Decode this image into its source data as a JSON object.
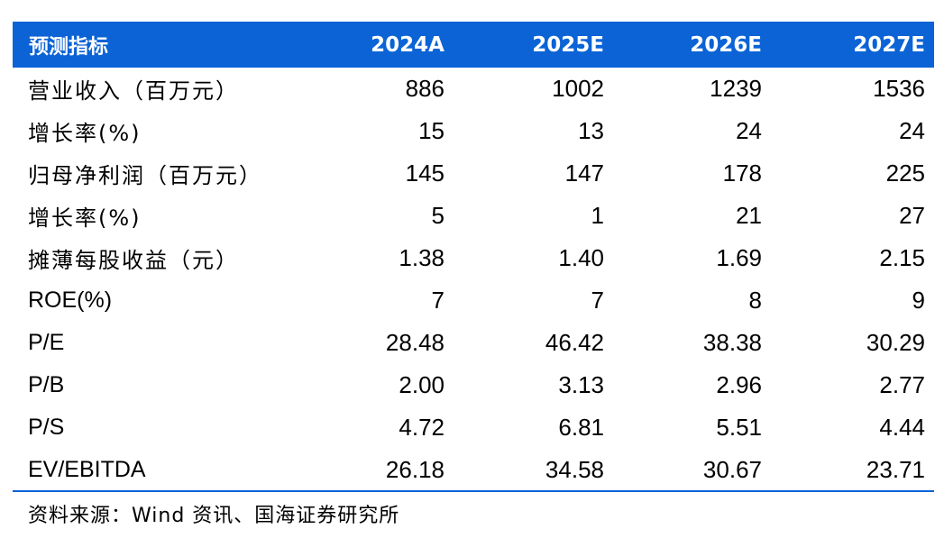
{
  "table": {
    "header": [
      "预测指标",
      "2024A",
      "2025E",
      "2026E",
      "2027E"
    ],
    "rows": [
      {
        "label": "营业收入（百万元）",
        "values": [
          "886",
          "1002",
          "1239",
          "1536"
        ],
        "latin": false
      },
      {
        "label": "增长率(%)",
        "values": [
          "15",
          "13",
          "24",
          "24"
        ],
        "latin": false
      },
      {
        "label": "归母净利润（百万元）",
        "values": [
          "145",
          "147",
          "178",
          "225"
        ],
        "latin": false
      },
      {
        "label": "增长率(%)",
        "values": [
          "5",
          "1",
          "21",
          "27"
        ],
        "latin": false
      },
      {
        "label": "摊薄每股收益（元）",
        "values": [
          "1.38",
          "1.40",
          "1.69",
          "2.15"
        ],
        "latin": false
      },
      {
        "label": "ROE(%)",
        "values": [
          "7",
          "7",
          "8",
          "9"
        ],
        "latin": true
      },
      {
        "label": "P/E",
        "values": [
          "28.48",
          "46.42",
          "38.38",
          "30.29"
        ],
        "latin": true
      },
      {
        "label": "P/B",
        "values": [
          "2.00",
          "3.13",
          "2.96",
          "2.77"
        ],
        "latin": true
      },
      {
        "label": "P/S",
        "values": [
          "4.72",
          "6.81",
          "5.51",
          "4.44"
        ],
        "latin": true
      },
      {
        "label": "EV/EBITDA",
        "values": [
          "26.18",
          "34.58",
          "30.67",
          "23.71"
        ],
        "latin": true
      }
    ]
  },
  "source": "资料来源：Wind 资讯、国海证券研究所",
  "colors": {
    "header_bg": "#0b63d6",
    "header_text": "#ffffff",
    "body_text": "#000000"
  }
}
